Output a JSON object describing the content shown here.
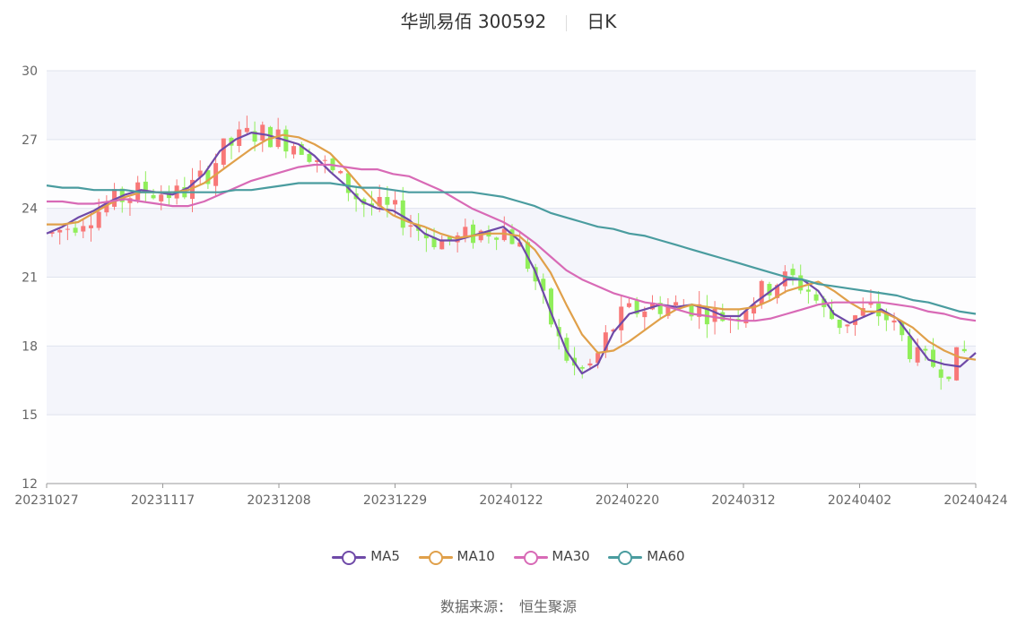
{
  "title": {
    "name": "华凯易佰 300592",
    "period": "日K"
  },
  "source": {
    "label": "数据来源：",
    "value": "恒生聚源"
  },
  "chart_data": {
    "type": "candlestick",
    "y_ticks": [
      "12",
      "15",
      "18",
      "21",
      "24",
      "27",
      "30"
    ],
    "ylim": [
      12,
      30
    ],
    "x_ticks": [
      "20231027",
      "20231117",
      "20231208",
      "20231229",
      "20240122",
      "20240220",
      "20240312",
      "20240402",
      "20240424"
    ],
    "colors": {
      "up": "#f87878",
      "down": "#90ee5a",
      "band": "#f4f5fb",
      "grid": "#dfe3ee",
      "axis": "#666666"
    },
    "series": [
      {
        "name": "MA5",
        "color": "#6f4aa8",
        "values": [
          22.9,
          23.2,
          23.6,
          23.9,
          24.3,
          24.6,
          24.8,
          24.7,
          24.6,
          24.9,
          25.5,
          26.5,
          27.0,
          27.3,
          27.2,
          27.0,
          26.8,
          26.3,
          25.6,
          25.0,
          24.3,
          24.0,
          23.9,
          23.5,
          22.9,
          22.6,
          22.6,
          22.8,
          23.0,
          23.2,
          22.6,
          21.3,
          19.5,
          17.8,
          16.8,
          17.2,
          18.6,
          19.4,
          19.6,
          19.8,
          19.7,
          19.8,
          19.6,
          19.3,
          19.3,
          19.9,
          20.4,
          20.9,
          20.9,
          20.4,
          19.4,
          19.0,
          19.3,
          19.6,
          19.2,
          18.3,
          17.4,
          17.2,
          17.1,
          17.7
        ]
      },
      {
        "name": "MA10",
        "color": "#e0a04a",
        "values": [
          23.3,
          23.3,
          23.4,
          23.8,
          24.2,
          24.5,
          24.7,
          24.7,
          24.7,
          24.8,
          25.1,
          25.6,
          26.1,
          26.6,
          27.0,
          27.2,
          27.1,
          26.8,
          26.4,
          25.7,
          24.9,
          24.2,
          23.7,
          23.4,
          23.2,
          22.9,
          22.7,
          22.8,
          22.9,
          22.9,
          22.8,
          22.2,
          21.2,
          19.8,
          18.5,
          17.7,
          17.8,
          18.2,
          18.7,
          19.2,
          19.6,
          19.8,
          19.7,
          19.6,
          19.6,
          19.7,
          20.0,
          20.4,
          20.6,
          20.8,
          20.4,
          19.9,
          19.5,
          19.5,
          19.2,
          18.8,
          18.2,
          17.8,
          17.5,
          17.4
        ]
      },
      {
        "name": "MA30",
        "color": "#d86ab6",
        "values": [
          24.3,
          24.3,
          24.2,
          24.2,
          24.3,
          24.4,
          24.3,
          24.2,
          24.1,
          24.1,
          24.3,
          24.6,
          24.9,
          25.2,
          25.4,
          25.6,
          25.8,
          25.9,
          25.9,
          25.8,
          25.7,
          25.7,
          25.5,
          25.4,
          25.1,
          24.8,
          24.4,
          24.0,
          23.7,
          23.4,
          23.0,
          22.5,
          21.9,
          21.3,
          20.9,
          20.6,
          20.3,
          20.1,
          19.9,
          19.8,
          19.6,
          19.4,
          19.3,
          19.2,
          19.1,
          19.1,
          19.2,
          19.4,
          19.6,
          19.8,
          19.9,
          19.9,
          19.9,
          19.9,
          19.8,
          19.7,
          19.5,
          19.4,
          19.2,
          19.1
        ]
      },
      {
        "name": "MA60",
        "color": "#4a9c9f",
        "values": [
          25.0,
          24.9,
          24.9,
          24.8,
          24.8,
          24.8,
          24.7,
          24.7,
          24.7,
          24.7,
          24.7,
          24.7,
          24.8,
          24.8,
          24.9,
          25.0,
          25.1,
          25.1,
          25.1,
          25.0,
          24.9,
          24.9,
          24.8,
          24.7,
          24.7,
          24.7,
          24.7,
          24.7,
          24.6,
          24.5,
          24.3,
          24.1,
          23.8,
          23.6,
          23.4,
          23.2,
          23.1,
          22.9,
          22.8,
          22.6,
          22.4,
          22.2,
          22.0,
          21.8,
          21.6,
          21.4,
          21.2,
          21.0,
          20.9,
          20.7,
          20.6,
          20.5,
          20.4,
          20.3,
          20.2,
          20.0,
          19.9,
          19.7,
          19.5,
          19.4
        ]
      }
    ]
  }
}
